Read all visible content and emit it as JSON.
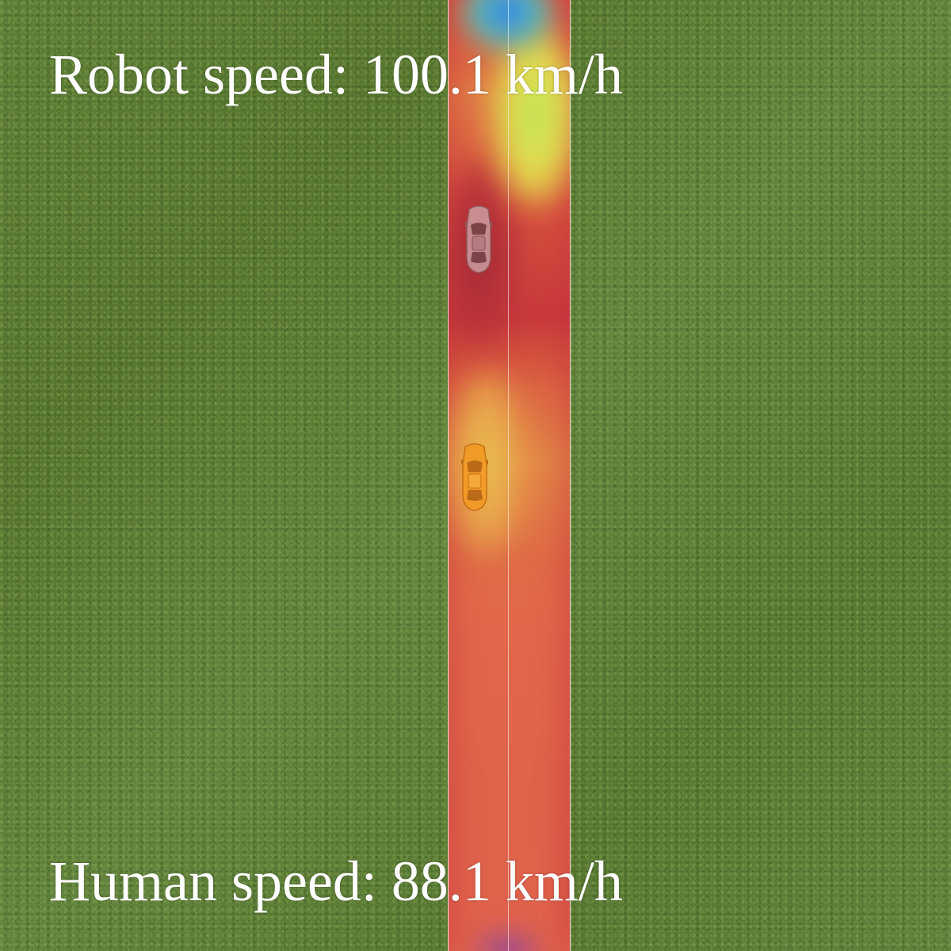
{
  "hud": {
    "robot_speed": "Robot speed: 100.1 km/h",
    "human_speed": "Human speed: 88.1 km/h"
  },
  "scene": {
    "background": "grass",
    "road_lanes": 2,
    "heatmap_colors": {
      "low": "#3a3fd0",
      "mid_low": "#5de0a0",
      "mid": "#e4e04d",
      "mid_high": "#e8a94b",
      "high": "#d94a3f",
      "peak": "#9c2a34"
    },
    "robot_car": {
      "icon": "car-topdown-icon",
      "color": "#d9d9d9"
    },
    "human_car": {
      "icon": "car-topdown-icon",
      "color": "#f08c1e"
    }
  }
}
